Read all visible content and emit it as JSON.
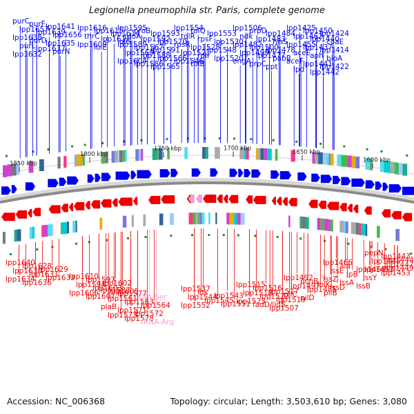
{
  "title": "Legionella pneumophila str. Paris, complete genome",
  "footer": {
    "accession": "Accession: NC_006368",
    "topology": "Topology: circular; Length: 3,503,610 bp; Genes: 3,080"
  },
  "colors": {
    "forward": "#0000ee",
    "reverse": "#ee0000",
    "rna": "#f0a0d0",
    "backbone": "#8a8a8a"
  },
  "ticks": [
    "1850 kbp",
    "1800 kbp",
    "1750 kbp",
    "1700 kbp",
    "1650 kbp",
    "1600 kbp"
  ],
  "top_labels": [
    "purC",
    "purF",
    "lpp1641",
    "lpp1657",
    "lpp1639",
    "lpp1656",
    "lpp1638",
    "purD",
    "lpp1635",
    "purL",
    "lpp1637",
    "purN",
    "lpp1632",
    "lpp1616",
    "lpp1615",
    "lpp1614",
    "thrC",
    "lpp1611",
    "iolG",
    "lpp1609",
    "iolE",
    "lpp1595",
    "proB",
    "lpp1593",
    "proA",
    "lpp1592",
    "lpp1570",
    "lpp1589",
    "lpp1567",
    "lpp1591",
    "lpp1569",
    "lpp1588",
    "lpp1566",
    "lpp1604",
    "lpp1586",
    "lpp1565",
    "lpp1554",
    "tolQ",
    "lpp1553",
    "tolR",
    "rpsF",
    "lpp1530",
    "rpsR",
    "lpp1528",
    "lpp1548",
    "lpp1521",
    "rplI",
    "lpp1520",
    "lpp1546",
    "tolB",
    "lpp1506",
    "prpD",
    "lpp1484",
    "ndk",
    "lpp1483",
    "hisS",
    "lpp1482",
    "lpp1500",
    "lpp1478",
    "lpp1499",
    "lpp1477",
    "pabB",
    "engA",
    "prpC",
    "ppt",
    "lpp1425",
    "lpp1450",
    "lpp1424",
    "lpp1462",
    "lpp1440",
    "coaE",
    "lpp1455",
    "lpp1437",
    "lpp1414",
    "aceE",
    "aph",
    "bioA",
    "aceF",
    "lpp1441",
    "lpp1422",
    "lpd",
    "lpp1442"
  ],
  "bottom_labels": [
    "lpp1640",
    "lpp1628",
    "lpp1629",
    "lpp1630",
    "lpp1631",
    "lpp1633",
    "lpp1634",
    "lpp1636",
    "lpp1610",
    "lpp1597",
    "lpp1602",
    "lpp1594",
    "lpp1603",
    "lpp1605",
    "lpp1606",
    "lpp1607",
    "lpp1587",
    "lpp1577",
    "tRNA-Ser",
    "lpp1561",
    "lpp1563",
    "lpp1564",
    "plaB",
    "lpp1571",
    "lpp1572",
    "lpp1573",
    "lpp1578",
    "tRNA-Arg",
    "lpp1537",
    "ldk",
    "lpp1543",
    "lpp1544",
    "lpp1545",
    "lpp1551",
    "lpp1552",
    "lpp1515",
    "lpp1516",
    "lpp1517",
    "lpp1518",
    "lpp1522",
    "lpp1519",
    "lpp1523",
    "fadD/lidS",
    "lpp1507",
    "lpp1492",
    "pcnB",
    "folK",
    "lpp1497",
    "lpp1485",
    "pilB",
    "pilC",
    "pilD",
    "lpp1466",
    "ala",
    "lpp1468",
    "lssE",
    "lpB",
    "lssY",
    "lssZ",
    "lssA",
    "lssB",
    "lssD",
    "pepN",
    "lpp1443",
    "lpp1444",
    "lpp1445",
    "lpp1447",
    "lpp1449",
    "lpp1452",
    "lpp1453"
  ]
}
